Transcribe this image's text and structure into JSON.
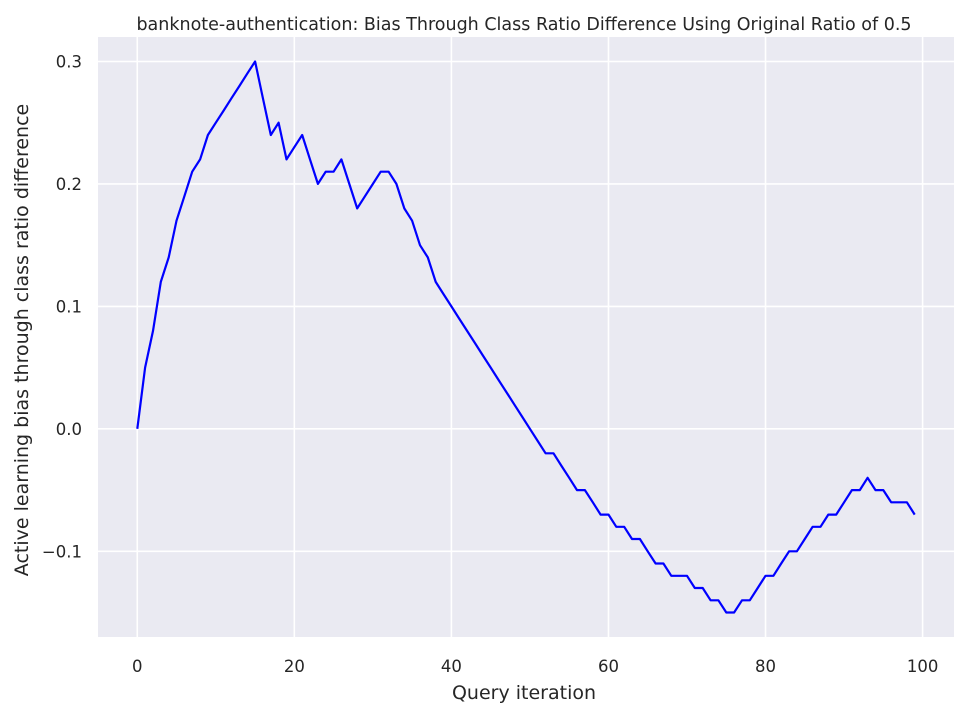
{
  "chart_data": {
    "type": "line",
    "title": "banknote-authentication: Bias Through Class Ratio Difference Using Original Ratio of 0.5",
    "xlabel": "Query iteration",
    "ylabel": "Active learning bias through class ratio difference",
    "xlim": [
      -5,
      104
    ],
    "ylim": [
      -0.17,
      0.32
    ],
    "xticks": [
      0,
      20,
      40,
      60,
      80,
      100
    ],
    "xtick_labels": [
      "0",
      "20",
      "40",
      "60",
      "80",
      "100"
    ],
    "yticks": [
      -0.1,
      0.0,
      0.1,
      0.2,
      0.3
    ],
    "ytick_labels": [
      "−0.1",
      "0.0",
      "0.1",
      "0.2",
      "0.3"
    ],
    "grid": true,
    "style": {
      "background": "#EAEAF2",
      "grid_color": "#FFFFFF",
      "line_color": "#0000FF"
    },
    "series": [
      {
        "color": "#0000FF",
        "x": [
          0,
          1,
          2,
          3,
          4,
          5,
          6,
          7,
          8,
          9,
          10,
          11,
          12,
          13,
          14,
          15,
          16,
          17,
          18,
          19,
          20,
          21,
          22,
          23,
          24,
          25,
          26,
          27,
          28,
          29,
          30,
          31,
          32,
          33,
          34,
          35,
          36,
          37,
          38,
          39,
          40,
          41,
          42,
          43,
          44,
          45,
          46,
          47,
          48,
          49,
          50,
          51,
          52,
          53,
          54,
          55,
          56,
          57,
          58,
          59,
          60,
          61,
          62,
          63,
          64,
          65,
          66,
          67,
          68,
          69,
          70,
          71,
          72,
          73,
          74,
          75,
          76,
          77,
          78,
          79,
          80,
          81,
          82,
          83,
          84,
          85,
          86,
          87,
          88,
          89,
          90,
          91,
          92,
          93,
          94,
          95,
          96,
          97,
          98,
          99
        ],
        "values": [
          0.0,
          0.05,
          0.08,
          0.12,
          0.14,
          0.17,
          0.19,
          0.21,
          0.22,
          0.24,
          0.25,
          0.26,
          0.27,
          0.28,
          0.29,
          0.3,
          0.27,
          0.24,
          0.25,
          0.22,
          0.23,
          0.24,
          0.22,
          0.2,
          0.21,
          0.21,
          0.22,
          0.2,
          0.18,
          0.19,
          0.2,
          0.21,
          0.21,
          0.2,
          0.18,
          0.17,
          0.15,
          0.14,
          0.12,
          0.11,
          0.1,
          0.09,
          0.08,
          0.07,
          0.06,
          0.05,
          0.04,
          0.03,
          0.02,
          0.01,
          0.0,
          -0.01,
          -0.02,
          -0.02,
          -0.03,
          -0.04,
          -0.05,
          -0.05,
          -0.06,
          -0.07,
          -0.07,
          -0.08,
          -0.08,
          -0.09,
          -0.09,
          -0.1,
          -0.11,
          -0.11,
          -0.12,
          -0.12,
          -0.12,
          -0.13,
          -0.13,
          -0.14,
          -0.14,
          -0.15,
          -0.15,
          -0.14,
          -0.14,
          -0.13,
          -0.12,
          -0.12,
          -0.11,
          -0.1,
          -0.1,
          -0.09,
          -0.08,
          -0.08,
          -0.07,
          -0.07,
          -0.06,
          -0.05,
          -0.05,
          -0.04,
          -0.05,
          -0.05,
          -0.06,
          -0.06,
          -0.06,
          -0.07
        ]
      }
    ]
  }
}
